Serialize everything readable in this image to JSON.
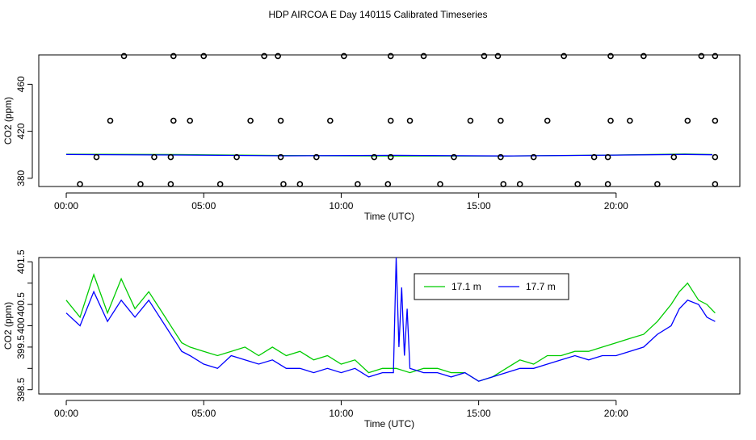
{
  "title": "HDP AIRCOA E  Day 140115  Calibrated Timeseries",
  "chart_data": [
    {
      "type": "scatter+line",
      "xlabel": "Time (UTC)",
      "ylabel": "CO2 (ppm)",
      "x_unit": "hours UTC",
      "xlim": [
        -1.0,
        24.5
      ],
      "ylim": [
        373,
        485
      ],
      "x_ticks": [
        0,
        5,
        10,
        15,
        20
      ],
      "x_tick_labels": [
        "00:00",
        "05:00",
        "10:00",
        "15:00",
        "20:00"
      ],
      "y_ticks": [
        380,
        420,
        460
      ],
      "y_tick_labels": [
        "380",
        "420",
        "460"
      ],
      "points_color": "#000000",
      "points": [
        {
          "x": 0.5,
          "y": 375
        },
        {
          "x": 2.7,
          "y": 375
        },
        {
          "x": 3.8,
          "y": 375
        },
        {
          "x": 5.6,
          "y": 375
        },
        {
          "x": 7.9,
          "y": 375
        },
        {
          "x": 8.5,
          "y": 375
        },
        {
          "x": 10.6,
          "y": 375
        },
        {
          "x": 11.7,
          "y": 375
        },
        {
          "x": 13.6,
          "y": 375
        },
        {
          "x": 15.9,
          "y": 375
        },
        {
          "x": 16.5,
          "y": 375
        },
        {
          "x": 18.6,
          "y": 375
        },
        {
          "x": 19.7,
          "y": 375
        },
        {
          "x": 21.5,
          "y": 375
        },
        {
          "x": 23.6,
          "y": 375
        },
        {
          "x": 1.1,
          "y": 398
        },
        {
          "x": 3.2,
          "y": 398
        },
        {
          "x": 3.8,
          "y": 398
        },
        {
          "x": 6.2,
          "y": 398
        },
        {
          "x": 7.8,
          "y": 398
        },
        {
          "x": 9.1,
          "y": 398
        },
        {
          "x": 11.2,
          "y": 398
        },
        {
          "x": 11.8,
          "y": 398
        },
        {
          "x": 14.1,
          "y": 398
        },
        {
          "x": 15.8,
          "y": 398
        },
        {
          "x": 17.0,
          "y": 398
        },
        {
          "x": 19.2,
          "y": 398
        },
        {
          "x": 19.7,
          "y": 398
        },
        {
          "x": 22.1,
          "y": 398
        },
        {
          "x": 23.6,
          "y": 398
        },
        {
          "x": 1.6,
          "y": 429
        },
        {
          "x": 3.9,
          "y": 429
        },
        {
          "x": 4.5,
          "y": 429
        },
        {
          "x": 6.7,
          "y": 429
        },
        {
          "x": 7.8,
          "y": 429
        },
        {
          "x": 9.6,
          "y": 429
        },
        {
          "x": 11.8,
          "y": 429
        },
        {
          "x": 12.5,
          "y": 429
        },
        {
          "x": 14.7,
          "y": 429
        },
        {
          "x": 15.8,
          "y": 429
        },
        {
          "x": 17.5,
          "y": 429
        },
        {
          "x": 19.8,
          "y": 429
        },
        {
          "x": 20.5,
          "y": 429
        },
        {
          "x": 22.6,
          "y": 429
        },
        {
          "x": 23.6,
          "y": 429
        },
        {
          "x": 2.1,
          "y": 484
        },
        {
          "x": 3.9,
          "y": 484
        },
        {
          "x": 5.0,
          "y": 484
        },
        {
          "x": 7.2,
          "y": 484
        },
        {
          "x": 7.7,
          "y": 484
        },
        {
          "x": 10.1,
          "y": 484
        },
        {
          "x": 11.8,
          "y": 484
        },
        {
          "x": 13.0,
          "y": 484
        },
        {
          "x": 15.2,
          "y": 484
        },
        {
          "x": 15.7,
          "y": 484
        },
        {
          "x": 18.1,
          "y": 484
        },
        {
          "x": 19.8,
          "y": 484
        },
        {
          "x": 21.0,
          "y": 484
        },
        {
          "x": 23.1,
          "y": 484
        },
        {
          "x": 23.6,
          "y": 484
        }
      ],
      "series": [
        {
          "color": "#00cc00",
          "x": [
            0,
            4,
            8,
            12,
            16,
            20,
            22.5,
            23.5
          ],
          "y": [
            400.5,
            400.2,
            399.3,
            399.0,
            399.0,
            399.8,
            400.6,
            400.2
          ]
        },
        {
          "color": "#0000ff",
          "x": [
            0,
            4,
            8,
            12,
            16,
            20,
            22.5,
            23.5
          ],
          "y": [
            400.2,
            399.8,
            399.1,
            399.5,
            399.0,
            399.7,
            400.3,
            400.0
          ]
        }
      ]
    },
    {
      "type": "line",
      "xlabel": "Time (UTC)",
      "ylabel": "CO2 (ppm)",
      "x_unit": "hours UTC",
      "xlim": [
        -1.0,
        24.5
      ],
      "ylim": [
        398.4,
        401.6
      ],
      "x_ticks": [
        0,
        5,
        10,
        15,
        20
      ],
      "x_tick_labels": [
        "00:00",
        "05:00",
        "10:00",
        "15:00",
        "20:00"
      ],
      "y_ticks": [
        398.5,
        399.5,
        400.5,
        401.5
      ],
      "y_tick_labels": [
        "398.5",
        "399.5",
        "400.5",
        "401.5"
      ],
      "y_minor_ticks": [
        399.0,
        400.0,
        401.0
      ],
      "y_minor_tick_labels": [
        "",
        "400",
        ""
      ],
      "legend": {
        "position": "top-center",
        "entries": [
          {
            "name": "17.1 m",
            "color": "#00cc00"
          },
          {
            "name": "17.7 m",
            "color": "#0000ff"
          }
        ]
      },
      "series": [
        {
          "name": "17.1 m",
          "color": "#00cc00",
          "x": [
            0,
            0.5,
            1,
            1.5,
            2,
            2.5,
            3,
            3.3,
            3.6,
            3.9,
            4.2,
            4.5,
            5,
            5.5,
            6,
            6.5,
            7,
            7.5,
            8,
            8.5,
            9,
            9.5,
            10,
            10.5,
            11,
            11.5,
            12,
            12.5,
            13,
            13.5,
            14,
            14.5,
            15,
            15.5,
            16,
            16.5,
            17,
            17.5,
            18,
            18.5,
            19,
            19.5,
            20,
            20.5,
            21,
            21.5,
            22,
            22.3,
            22.6,
            23,
            23.3,
            23.6
          ],
          "y": [
            400.6,
            400.2,
            401.2,
            400.3,
            401.1,
            400.4,
            400.8,
            400.5,
            400.2,
            399.9,
            399.6,
            399.5,
            399.4,
            399.3,
            399.4,
            399.5,
            399.3,
            399.5,
            399.3,
            399.4,
            399.2,
            399.3,
            399.1,
            399.2,
            398.9,
            399.0,
            399.0,
            398.9,
            399.0,
            399.0,
            398.9,
            398.9,
            398.7,
            398.8,
            399.0,
            399.2,
            399.1,
            399.3,
            399.3,
            399.4,
            399.4,
            399.5,
            399.6,
            399.7,
            399.8,
            400.1,
            400.5,
            400.8,
            401.0,
            400.6,
            400.5,
            400.3
          ]
        },
        {
          "name": "17.7 m",
          "color": "#0000ff",
          "x": [
            0,
            0.5,
            1,
            1.5,
            2,
            2.5,
            3,
            3.3,
            3.6,
            3.9,
            4.2,
            4.5,
            5,
            5.5,
            6,
            6.5,
            7,
            7.5,
            8,
            8.5,
            9,
            9.5,
            10,
            10.5,
            11,
            11.5,
            11.9,
            12.0,
            12.1,
            12.2,
            12.3,
            12.4,
            12.5,
            13,
            13.5,
            14,
            14.5,
            15,
            15.5,
            16,
            16.5,
            17,
            17.5,
            18,
            18.5,
            19,
            19.5,
            20,
            20.5,
            21,
            21.5,
            22,
            22.3,
            22.6,
            23,
            23.3,
            23.6
          ],
          "y": [
            400.3,
            400.0,
            400.8,
            400.1,
            400.6,
            400.2,
            400.6,
            400.3,
            400.0,
            399.7,
            399.4,
            399.3,
            399.1,
            399.0,
            399.3,
            399.2,
            399.1,
            399.2,
            399.0,
            399.0,
            398.9,
            399.0,
            398.9,
            399.0,
            398.8,
            398.9,
            398.9,
            401.6,
            399.5,
            400.9,
            399.3,
            400.4,
            399.0,
            398.9,
            398.9,
            398.8,
            398.9,
            398.7,
            398.8,
            398.9,
            399.0,
            399.0,
            399.1,
            399.2,
            399.3,
            399.2,
            399.3,
            399.3,
            399.4,
            399.5,
            399.8,
            400.0,
            400.4,
            400.6,
            400.5,
            400.2,
            400.1
          ]
        }
      ]
    }
  ]
}
